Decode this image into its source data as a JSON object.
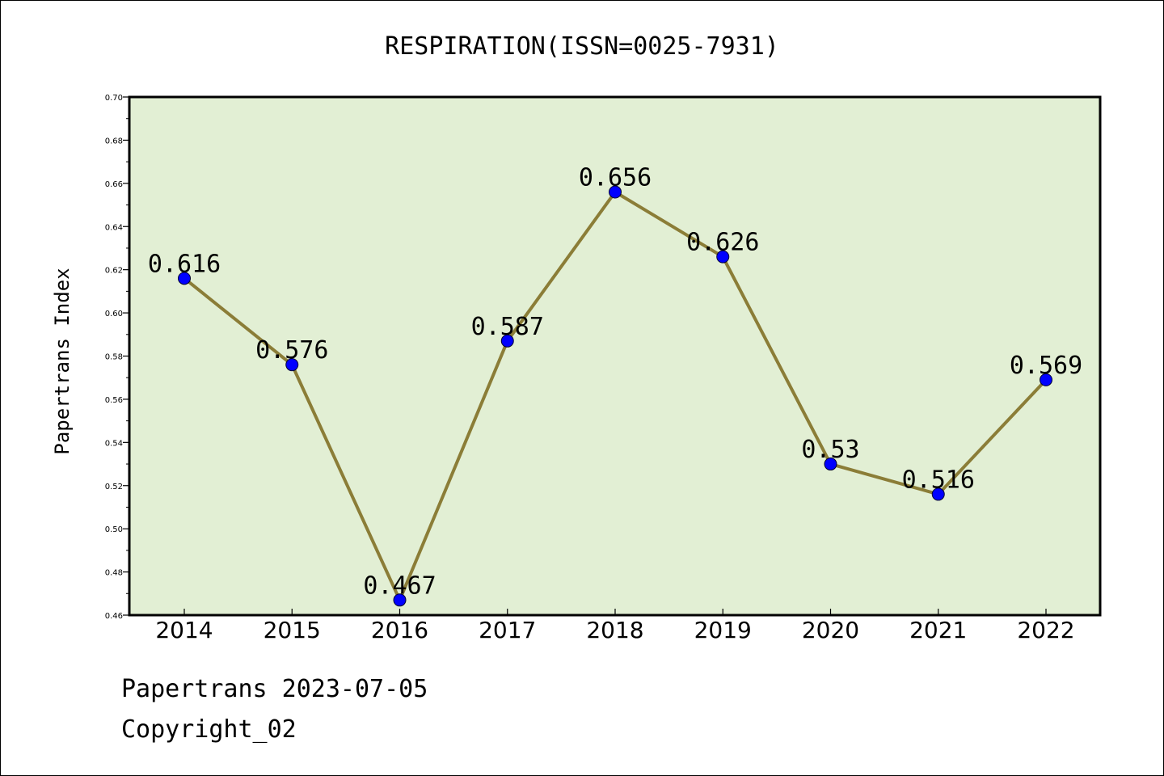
{
  "chart_data": {
    "type": "line",
    "title": "RESPIRATION(ISSN=0025-7931)",
    "xlabel": "",
    "ylabel": "Papertrans Index",
    "categories": [
      "2014",
      "2015",
      "2016",
      "2017",
      "2018",
      "2019",
      "2020",
      "2021",
      "2022"
    ],
    "values": [
      0.616,
      0.576,
      0.467,
      0.587,
      0.656,
      0.626,
      0.53,
      0.516,
      0.569
    ],
    "data_labels": [
      "0.616",
      "0.576",
      "0.467",
      "0.587",
      "0.656",
      "0.626",
      "0.53",
      "0.516",
      "0.569"
    ],
    "ylim": [
      0.46,
      0.7
    ],
    "yticks": [
      "0.46",
      "0.48",
      "0.50",
      "0.52",
      "0.54",
      "0.56",
      "0.58",
      "0.60",
      "0.62",
      "0.64",
      "0.66",
      "0.68",
      "0.70"
    ],
    "grid": false,
    "colors": {
      "plot_background": "#e2efd4",
      "line": "#8b7d37",
      "marker": "#0000ff"
    }
  },
  "footer": {
    "line1": "Papertrans 2023-07-05",
    "line2": "Copyright_02"
  }
}
